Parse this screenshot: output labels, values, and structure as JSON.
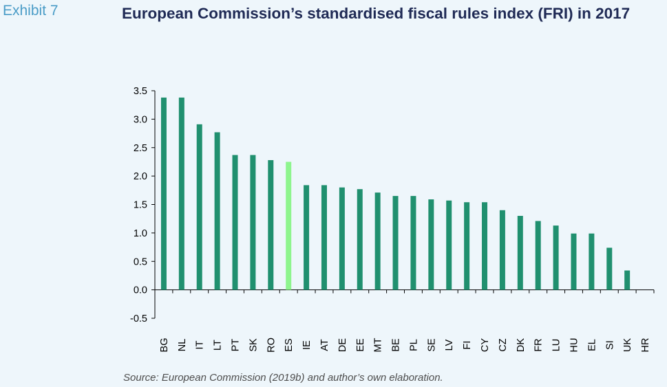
{
  "exhibit_label": "Exhibit 7",
  "title": "European Commission’s standardised fiscal rules index (FRI) in 2017",
  "source": "Source: European Commission (2019b) and author’s own elaboration.",
  "colors": {
    "bar": "#20906f",
    "highlight": "#8ef58e",
    "background": "#eef6fb"
  },
  "chart_data": {
    "type": "bar",
    "title": "European Commission’s standardised fiscal rules index (FRI) in 2017",
    "xlabel": "",
    "ylabel": "",
    "ylim": [
      -0.5,
      3.5
    ],
    "yticks": [
      "3.5",
      "3.0",
      "2.5",
      "2.0",
      "1.5",
      "1.0",
      "0.5",
      "0.0",
      "-0.5"
    ],
    "categories": [
      "BG",
      "NL",
      "IT",
      "LT",
      "PT",
      "SK",
      "RO",
      "ES",
      "IE",
      "AT",
      "DE",
      "EE",
      "MT",
      "BE",
      "PL",
      "SE",
      "LV",
      "FI",
      "CY",
      "CZ",
      "DK",
      "FR",
      "LU",
      "HU",
      "EL",
      "SI",
      "UK",
      "HR"
    ],
    "values": [
      3.38,
      3.38,
      2.91,
      2.77,
      2.37,
      2.37,
      2.28,
      2.25,
      1.84,
      1.84,
      1.8,
      1.77,
      1.71,
      1.65,
      1.65,
      1.59,
      1.57,
      1.54,
      1.54,
      1.4,
      1.3,
      1.21,
      1.13,
      0.99,
      0.99,
      0.74,
      0.34,
      0.0
    ],
    "highlight_category": "ES",
    "grid": false,
    "legend": "none"
  }
}
